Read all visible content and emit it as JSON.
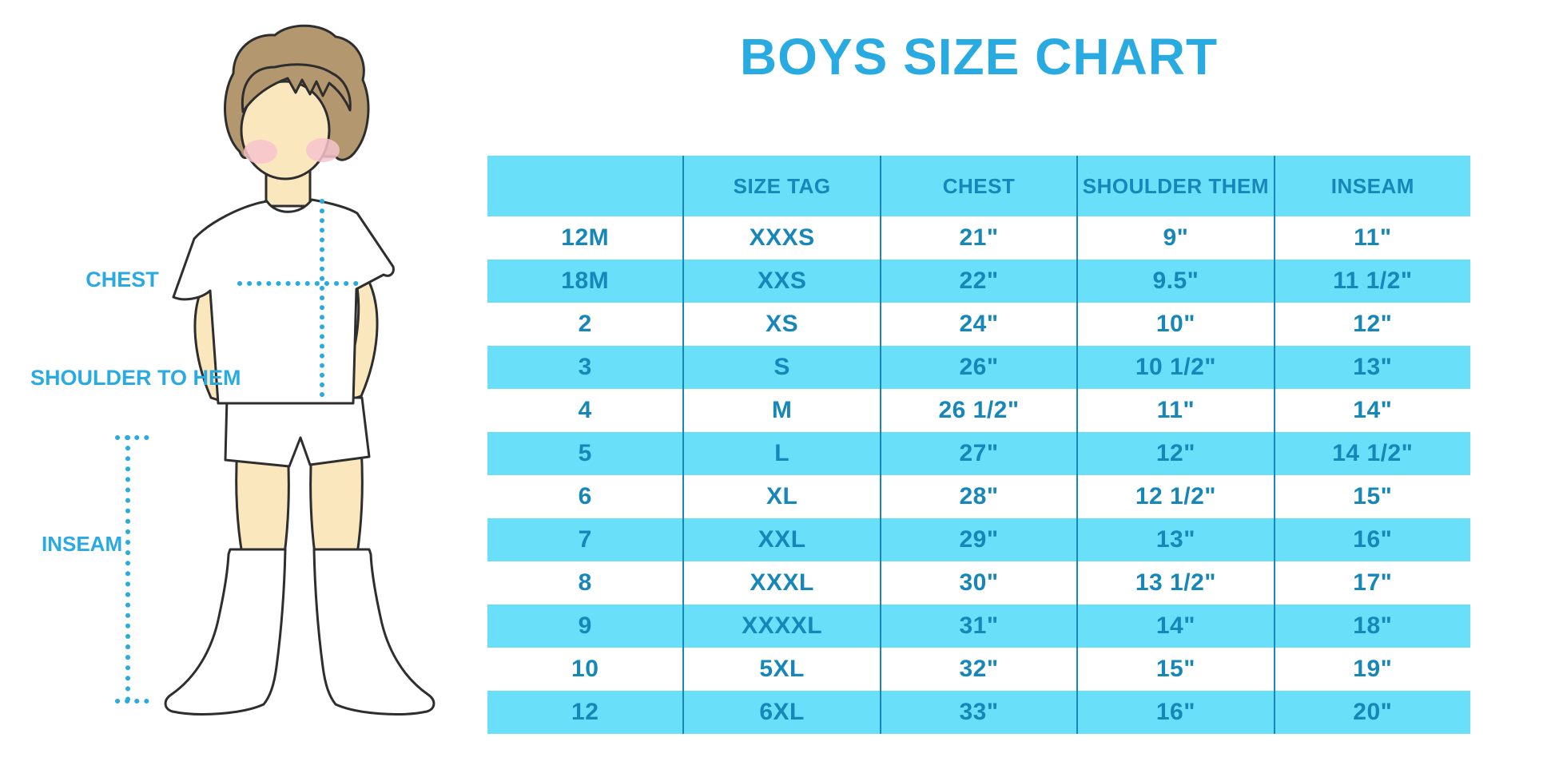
{
  "title": "BOYS SIZE CHART",
  "diagram": {
    "labels": {
      "chest": "CHEST",
      "shoulder_to_hem": "SHOULDER TO HEM",
      "inseam": "INSEAM"
    }
  },
  "table": {
    "headers": [
      "",
      "SIZE TAG",
      "CHEST",
      "SHOULDER THEM",
      "INSEAM"
    ]
  },
  "chart_data": {
    "type": "table",
    "title": "BOYS SIZE CHART",
    "columns": [
      "",
      "SIZE TAG",
      "CHEST",
      "SHOULDER THEM",
      "INSEAM"
    ],
    "rows": [
      [
        "12M",
        "XXXS",
        "21\"",
        "9\"",
        "11\""
      ],
      [
        "18M",
        "XXS",
        "22\"",
        "9.5\"",
        "11 1/2\""
      ],
      [
        "2",
        "XS",
        "24\"",
        "10\"",
        "12\""
      ],
      [
        "3",
        "S",
        "26\"",
        "10 1/2\"",
        "13\""
      ],
      [
        "4",
        "M",
        "26 1/2\"",
        "11\"",
        "14\""
      ],
      [
        "5",
        "L",
        "27\"",
        "12\"",
        "14 1/2\""
      ],
      [
        "6",
        "XL",
        "28\"",
        "12 1/2\"",
        "15\""
      ],
      [
        "7",
        "XXL",
        "29\"",
        "13\"",
        "16\""
      ],
      [
        "8",
        "XXXL",
        "30\"",
        "13 1/2\"",
        "17\""
      ],
      [
        "9",
        "XXXXL",
        "31\"",
        "14\"",
        "18\""
      ],
      [
        "10",
        "5XL",
        "32\"",
        "15\"",
        "19\""
      ],
      [
        "12",
        "6XL",
        "33\"",
        "16\"",
        "20\""
      ]
    ],
    "layout": {
      "striped": true,
      "stripe_pattern": "header cyan, then rows alternate white/cyan starting white"
    }
  },
  "colors": {
    "accent_cyan": "#29ABE2",
    "row_fill_cyan": "#6ADFFA",
    "table_text": "#1786B8",
    "divider": "#1786B8",
    "skin": "#FAE7BE",
    "hair": "#B3976F",
    "cheek": "#F6C3CC",
    "outline": "#2E2E2E",
    "background": "#FFFFFF"
  }
}
